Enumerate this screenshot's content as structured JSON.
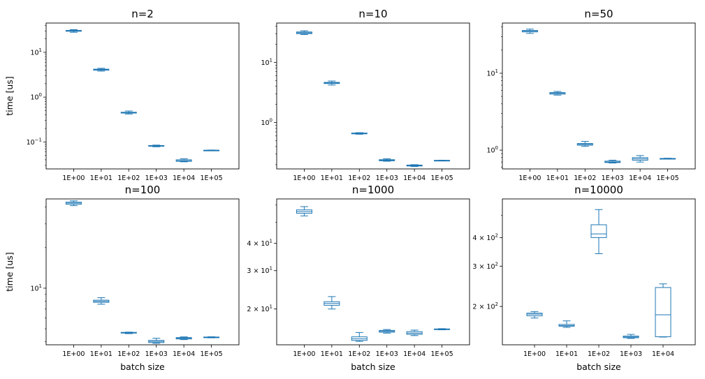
{
  "figure": {
    "background": "#ffffff",
    "box_color": "#1f77b4"
  },
  "chart_data": [
    {
      "type": "box",
      "title": "n=2",
      "xlabel": "",
      "ylabel": "time [us]",
      "yscale": "log",
      "ylim": [
        0.025,
        45
      ],
      "categories": [
        "1E+00",
        "1E+01",
        "1E+02",
        "1E+03",
        "1E+04",
        "1E+05"
      ],
      "yticks": [
        {
          "value": 10,
          "label": "10",
          "exp": "1"
        },
        {
          "value": 1,
          "label": "10",
          "exp": "0"
        },
        {
          "value": 0.1,
          "label": "10",
          "exp": "−1"
        }
      ],
      "boxes": [
        {
          "whislo": 28.0,
          "q1": 29.5,
          "med": 30.0,
          "q3": 30.8,
          "whishi": 32.0
        },
        {
          "whislo": 3.8,
          "q1": 4.0,
          "med": 4.1,
          "q3": 4.2,
          "whishi": 4.4
        },
        {
          "whislo": 0.42,
          "q1": 0.44,
          "med": 0.45,
          "q3": 0.46,
          "whishi": 0.49
        },
        {
          "whislo": 0.078,
          "q1": 0.08,
          "med": 0.081,
          "q3": 0.083,
          "whishi": 0.085
        },
        {
          "whislo": 0.036,
          "q1": 0.037,
          "med": 0.038,
          "q3": 0.04,
          "whishi": 0.042
        },
        {
          "whislo": 0.064,
          "q1": 0.0645,
          "med": 0.065,
          "q3": 0.0655,
          "whishi": 0.066
        }
      ]
    },
    {
      "type": "box",
      "title": "n=10",
      "xlabel": "",
      "ylabel": "",
      "yscale": "log",
      "ylim": [
        0.17,
        45
      ],
      "categories": [
        "1E+00",
        "1E+01",
        "1E+02",
        "1E+03",
        "1E+04",
        "1E+05"
      ],
      "yticks": [
        {
          "value": 10,
          "label": "10",
          "exp": "1"
        },
        {
          "value": 1,
          "label": "10",
          "exp": "0"
        }
      ],
      "boxes": [
        {
          "whislo": 29.0,
          "q1": 30.0,
          "med": 31.0,
          "q3": 32.0,
          "whishi": 33.5
        },
        {
          "whislo": 4.2,
          "q1": 4.45,
          "med": 4.55,
          "q3": 4.65,
          "whishi": 4.9
        },
        {
          "whislo": 0.64,
          "q1": 0.65,
          "med": 0.66,
          "q3": 0.67,
          "whishi": 0.68
        },
        {
          "whislo": 0.228,
          "q1": 0.232,
          "med": 0.237,
          "q3": 0.242,
          "whishi": 0.25
        },
        {
          "whislo": 0.186,
          "q1": 0.19,
          "med": 0.193,
          "q3": 0.197,
          "whishi": 0.2
        },
        {
          "whislo": 0.232,
          "q1": 0.234,
          "med": 0.235,
          "q3": 0.236,
          "whishi": 0.237
        }
      ]
    },
    {
      "type": "box",
      "title": "n=50",
      "xlabel": "",
      "ylabel": "",
      "yscale": "log",
      "ylim": [
        0.57,
        45
      ],
      "categories": [
        "1E+00",
        "1E+01",
        "1E+02",
        "1E+03",
        "1E+04",
        "1E+05"
      ],
      "yticks": [
        {
          "value": 10,
          "label": "10",
          "exp": "1"
        },
        {
          "value": 1,
          "label": "10",
          "exp": "0"
        }
      ],
      "boxes": [
        {
          "whislo": 33.0,
          "q1": 34.5,
          "med": 35.5,
          "q3": 36.0,
          "whishi": 37.5
        },
        {
          "whislo": 5.2,
          "q1": 5.35,
          "med": 5.5,
          "q3": 5.6,
          "whishi": 5.8
        },
        {
          "whislo": 1.12,
          "q1": 1.16,
          "med": 1.19,
          "q3": 1.22,
          "whishi": 1.3
        },
        {
          "whislo": 0.68,
          "q1": 0.69,
          "med": 0.7,
          "q3": 0.72,
          "whishi": 0.74
        },
        {
          "whislo": 0.7,
          "q1": 0.74,
          "med": 0.77,
          "q3": 0.8,
          "whishi": 0.85
        },
        {
          "whislo": 0.765,
          "q1": 0.77,
          "med": 0.775,
          "q3": 0.78,
          "whishi": 0.785
        }
      ]
    },
    {
      "type": "box",
      "title": "n=100",
      "xlabel": "batch size",
      "ylabel": "time [us]",
      "yscale": "log",
      "ylim": [
        3.8,
        46
      ],
      "categories": [
        "1E+00",
        "1E+01",
        "1E+02",
        "1E+03",
        "1E+04",
        "1E+05"
      ],
      "yticks": [
        {
          "value": 10,
          "label": "10",
          "exp": "1"
        }
      ],
      "boxes": [
        {
          "whislo": 41.0,
          "q1": 42.0,
          "med": 42.8,
          "q3": 43.5,
          "whishi": 44.5
        },
        {
          "whislo": 7.6,
          "q1": 7.85,
          "med": 8.0,
          "q3": 8.15,
          "whishi": 8.5
        },
        {
          "whislo": 4.6,
          "q1": 4.64,
          "med": 4.67,
          "q3": 4.7,
          "whishi": 4.72
        },
        {
          "whislo": 3.9,
          "q1": 3.95,
          "med": 4.02,
          "q3": 4.1,
          "whishi": 4.25
        },
        {
          "whislo": 4.15,
          "q1": 4.2,
          "med": 4.25,
          "q3": 4.3,
          "whishi": 4.35
        },
        {
          "whislo": 4.28,
          "q1": 4.3,
          "med": 4.32,
          "q3": 4.34,
          "whishi": 4.36
        }
      ]
    },
    {
      "type": "box",
      "title": "n=1000",
      "xlabel": "batch size",
      "ylabel": "",
      "yscale": "log",
      "ylim": [
        13.7,
        64
      ],
      "categories": [
        "1E+00",
        "1E+01",
        "1E+02",
        "1E+03",
        "1E+04",
        "1E+05"
      ],
      "yticks": [
        {
          "value": 40,
          "label": "4 × 10",
          "exp": "1"
        },
        {
          "value": 30,
          "label": "3 × 10",
          "exp": "1"
        },
        {
          "value": 20,
          "label": "2 × 10",
          "exp": "1"
        }
      ],
      "boxes": [
        {
          "whislo": 53.5,
          "q1": 55.0,
          "med": 56.0,
          "q3": 57.0,
          "whishi": 59.0
        },
        {
          "whislo": 20.0,
          "q1": 20.8,
          "med": 21.2,
          "q3": 21.6,
          "whishi": 22.8
        },
        {
          "whislo": 14.2,
          "q1": 14.35,
          "med": 14.6,
          "q3": 14.9,
          "whishi": 15.6
        },
        {
          "whislo": 15.5,
          "q1": 15.65,
          "med": 15.8,
          "q3": 15.95,
          "whishi": 16.1
        },
        {
          "whislo": 15.1,
          "q1": 15.3,
          "med": 15.5,
          "q3": 15.75,
          "whishi": 16.0
        },
        {
          "whislo": 16.05,
          "q1": 16.1,
          "med": 16.15,
          "q3": 16.2,
          "whishi": 16.25
        }
      ]
    },
    {
      "type": "box",
      "title": "n=10000",
      "xlabel": "batch size",
      "ylabel": "",
      "yscale": "log",
      "ylim": [
        136,
        590
      ],
      "categories": [
        "1E+00",
        "1E+01",
        "1E+02",
        "1E+03",
        "1E+04"
      ],
      "yticks": [
        {
          "value": 400,
          "label": "4 × 10",
          "exp": "2"
        },
        {
          "value": 300,
          "label": "3 × 10",
          "exp": "2"
        },
        {
          "value": 200,
          "label": "2 × 10",
          "exp": "2"
        }
      ],
      "boxes": [
        {
          "whislo": 178,
          "q1": 182,
          "med": 185,
          "q3": 187,
          "whishi": 190
        },
        {
          "whislo": 162,
          "q1": 164,
          "med": 165,
          "q3": 167,
          "whishi": 173
        },
        {
          "whislo": 340,
          "q1": 400,
          "med": 415,
          "q3": 455,
          "whishi": 530
        },
        {
          "whislo": 145,
          "q1": 146,
          "med": 147,
          "q3": 148.5,
          "whishi": 151
        },
        {
          "whislo": 147,
          "q1": 147.5,
          "med": 184,
          "q3": 242,
          "whishi": 251
        }
      ]
    }
  ]
}
